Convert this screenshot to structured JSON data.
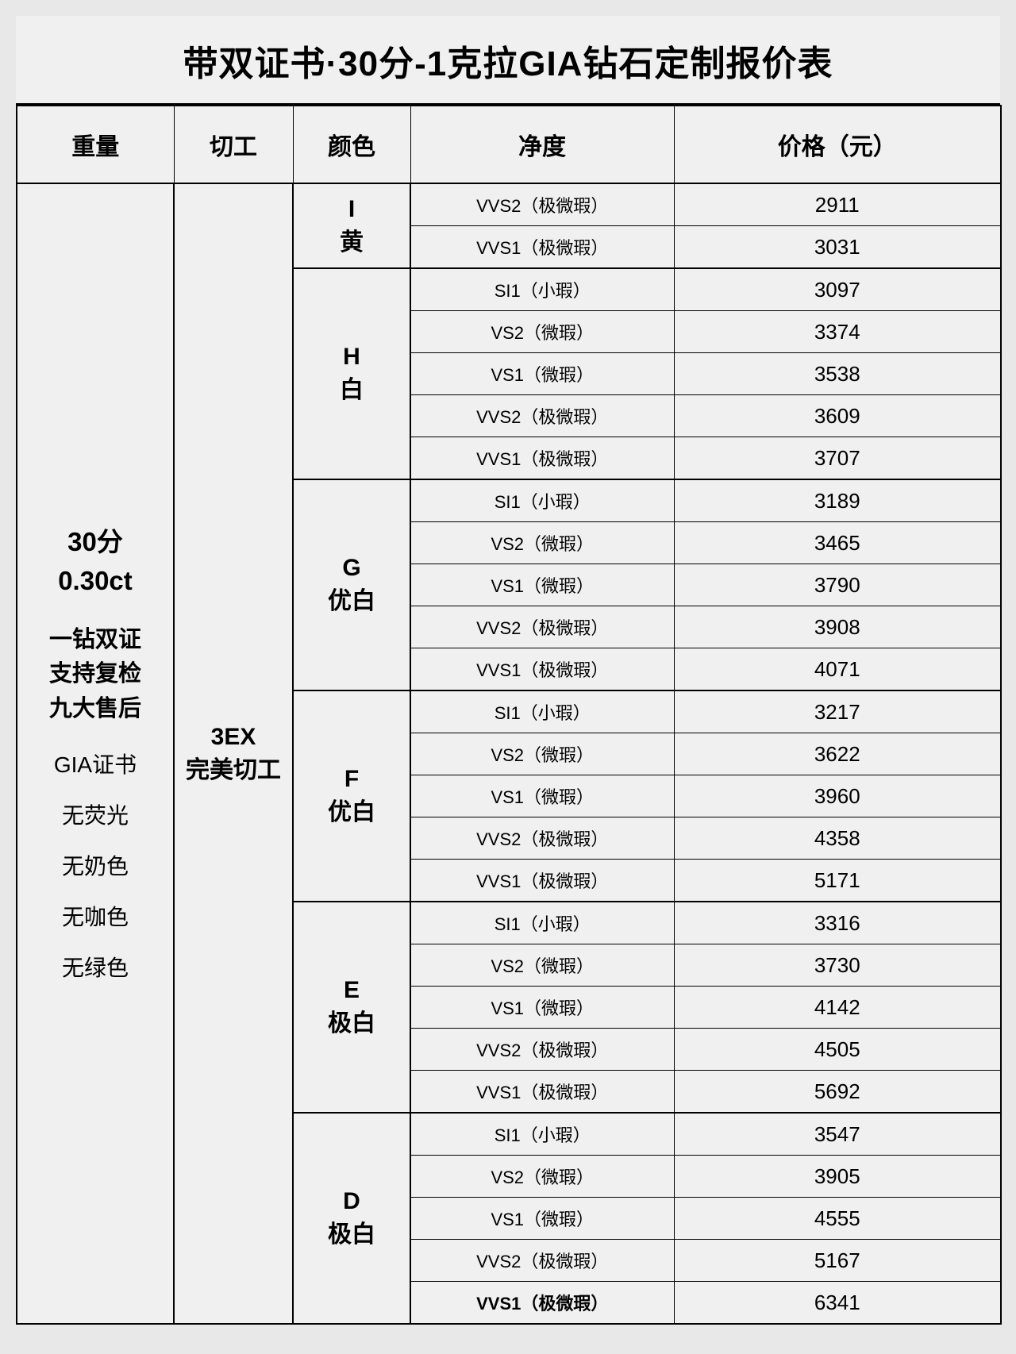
{
  "title": "带双证书·30分-1克拉GIA钻石定制报价表",
  "headers": {
    "weight": "重量",
    "cut": "切工",
    "color": "颜色",
    "clarity": "净度",
    "price": "价格（元）"
  },
  "weight_block": {
    "main1": "30分",
    "main2": "0.30ct",
    "b1": "一钻双证",
    "b2": "支持复检",
    "b3": "九大售后",
    "n1": "GIA证书",
    "n2": "无荧光",
    "n3": "无奶色",
    "n4": "无咖色",
    "n5": "无绿色"
  },
  "cut": {
    "line1": "3EX",
    "line2": "完美切工"
  },
  "groups": [
    {
      "color1": "I",
      "color2": "黄",
      "rows": [
        {
          "clarity": "VVS2（极微瑕）",
          "price": "2911"
        },
        {
          "clarity": "VVS1（极微瑕）",
          "price": "3031"
        }
      ]
    },
    {
      "color1": "H",
      "color2": "白",
      "rows": [
        {
          "clarity": "SI1（小瑕）",
          "price": "3097"
        },
        {
          "clarity": "VS2（微瑕）",
          "price": "3374"
        },
        {
          "clarity": "VS1（微瑕）",
          "price": "3538"
        },
        {
          "clarity": "VVS2（极微瑕）",
          "price": "3609"
        },
        {
          "clarity": "VVS1（极微瑕）",
          "price": "3707"
        }
      ]
    },
    {
      "color1": "G",
      "color2": "优白",
      "rows": [
        {
          "clarity": "SI1（小瑕）",
          "price": "3189"
        },
        {
          "clarity": "VS2（微瑕）",
          "price": "3465"
        },
        {
          "clarity": "VS1（微瑕）",
          "price": "3790"
        },
        {
          "clarity": "VVS2（极微瑕）",
          "price": "3908"
        },
        {
          "clarity": "VVS1（极微瑕）",
          "price": "4071"
        }
      ]
    },
    {
      "color1": "F",
      "color2": "优白",
      "rows": [
        {
          "clarity": "SI1（小瑕）",
          "price": "3217"
        },
        {
          "clarity": "VS2（微瑕）",
          "price": "3622"
        },
        {
          "clarity": "VS1（微瑕）",
          "price": "3960"
        },
        {
          "clarity": "VVS2（极微瑕）",
          "price": "4358"
        },
        {
          "clarity": "VVS1（极微瑕）",
          "price": "5171"
        }
      ]
    },
    {
      "color1": "E",
      "color2": "极白",
      "rows": [
        {
          "clarity": "SI1（小瑕）",
          "price": "3316"
        },
        {
          "clarity": "VS2（微瑕）",
          "price": "3730"
        },
        {
          "clarity": "VS1（微瑕）",
          "price": "4142"
        },
        {
          "clarity": "VVS2（极微瑕）",
          "price": "4505"
        },
        {
          "clarity": "VVS1（极微瑕）",
          "price": "5692"
        }
      ]
    },
    {
      "color1": "D",
      "color2": "极白",
      "rows": [
        {
          "clarity": "SI1（小瑕）",
          "price": "3547"
        },
        {
          "clarity": "VS2（微瑕）",
          "price": "3905"
        },
        {
          "clarity": "VS1（微瑕）",
          "price": "4555"
        },
        {
          "clarity": "VVS2（极微瑕）",
          "price": "5167"
        },
        {
          "clarity": "VVS1（极微瑕）",
          "price": "6341",
          "bold": true
        }
      ]
    }
  ],
  "total_rows": 27,
  "style": {
    "bg": "#f0f0f0",
    "border": "#000000",
    "title_fontsize": 44,
    "header_fontsize": 30,
    "price_fontsize": 26
  }
}
